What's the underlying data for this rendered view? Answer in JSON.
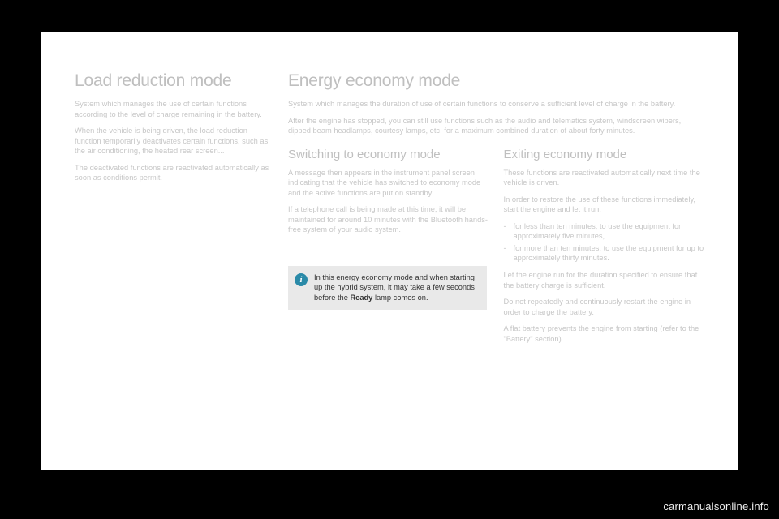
{
  "left": {
    "title": "Load reduction mode",
    "p1": "System which manages the use of certain functions according to the level of charge remaining in the battery.",
    "p2": "When the vehicle is being driven, the load reduction function temporarily deactivates certain functions, such as the air conditioning, the heated rear screen...",
    "p3": "The deactivated functions are reactivated automatically as soon as conditions permit."
  },
  "right": {
    "title": "Energy economy mode",
    "intro1": "System which manages the duration of use of certain functions to conserve a sufficient level of charge in the battery.",
    "intro2": "After the engine has stopped, you can still use functions such as the audio and telematics system, windscreen wipers, dipped beam headlamps, courtesy lamps, etc. for a maximum combined duration of about forty minutes.",
    "switching": {
      "title": "Switching to economy mode",
      "p1": "A message then appears in the instrument panel screen indicating that the vehicle has switched to economy mode and the active functions are put on standby.",
      "p2": "If a telephone call is being made at this time, it will be maintained for around 10 minutes with the Bluetooth hands-free system of your audio system."
    },
    "exiting": {
      "title": "Exiting economy mode",
      "p1": "These functions are reactivated automatically next time the vehicle is driven.",
      "p2": "In order to restore the use of these functions immediately, start the engine and let it run:",
      "b1": "for less than ten minutes, to use the equipment for approximately five minutes,",
      "b2": "for more than ten minutes, to use the equipment for up to approximately thirty minutes.",
      "p3": "Let the engine run for the duration specified to ensure that the battery charge is sufficient.",
      "p4": "Do not repeatedly and continuously restart the engine in order to charge the battery.",
      "p5": "A flat battery prevents the engine from starting (refer to the \"Battery\" section)."
    },
    "callout": {
      "text_before": "In this energy economy mode and when starting up the hybrid system, it may take a few seconds before the ",
      "bold": "Ready",
      "text_after": " lamp comes on."
    }
  },
  "watermark": "carmanualsonline.info"
}
